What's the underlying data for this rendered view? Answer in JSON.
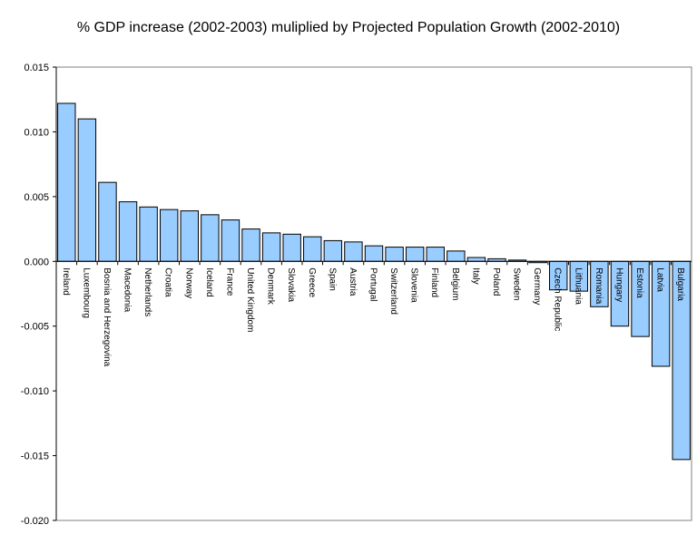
{
  "chart_data": {
    "type": "bar",
    "title": "% GDP increase (2002-2003) muliplied by Projected Population Growth (2002-2010)",
    "xlabel": "",
    "ylabel": "",
    "ylim": [
      -0.02,
      0.015
    ],
    "yticks": [
      "0.015",
      "0.010",
      "0.005",
      "0.000",
      "-0.005",
      "-0.010",
      "-0.015",
      "-0.020"
    ],
    "ytick_values": [
      0.015,
      0.01,
      0.005,
      0.0,
      -0.005,
      -0.01,
      -0.015,
      -0.02
    ],
    "grid": false,
    "legend": "none",
    "bar_color": "#99ccff",
    "bar_border": "#000000",
    "categories": [
      "Ireland",
      "Luxembourg",
      "Bosnia and Herzegovina",
      "Macedonia",
      "Netherlands",
      "Croatia",
      "Norway",
      "Iceland",
      "France",
      "United Kingdom",
      "Denmark",
      "Slovakia",
      "Greece",
      "Spain",
      "Austria",
      "Portugal",
      "Switzerland",
      "Slovenia",
      "Finland",
      "Belgium",
      "Italy",
      "Poland",
      "Sweden",
      "Germany",
      "Czech Republic",
      "Lithuania",
      "Romania",
      "Hungary",
      "Estonia",
      "Latvia",
      "Bulgaria"
    ],
    "values": [
      0.0122,
      0.011,
      0.0061,
      0.0046,
      0.0042,
      0.004,
      0.0039,
      0.0036,
      0.0032,
      0.0025,
      0.0022,
      0.0021,
      0.0019,
      0.0016,
      0.0015,
      0.0012,
      0.0011,
      0.0011,
      0.0011,
      0.0008,
      0.0003,
      0.0002,
      0.0001,
      -0.0001,
      -0.0022,
      -0.0023,
      -0.0035,
      -0.005,
      -0.0058,
      -0.0081,
      -0.0153
    ]
  }
}
